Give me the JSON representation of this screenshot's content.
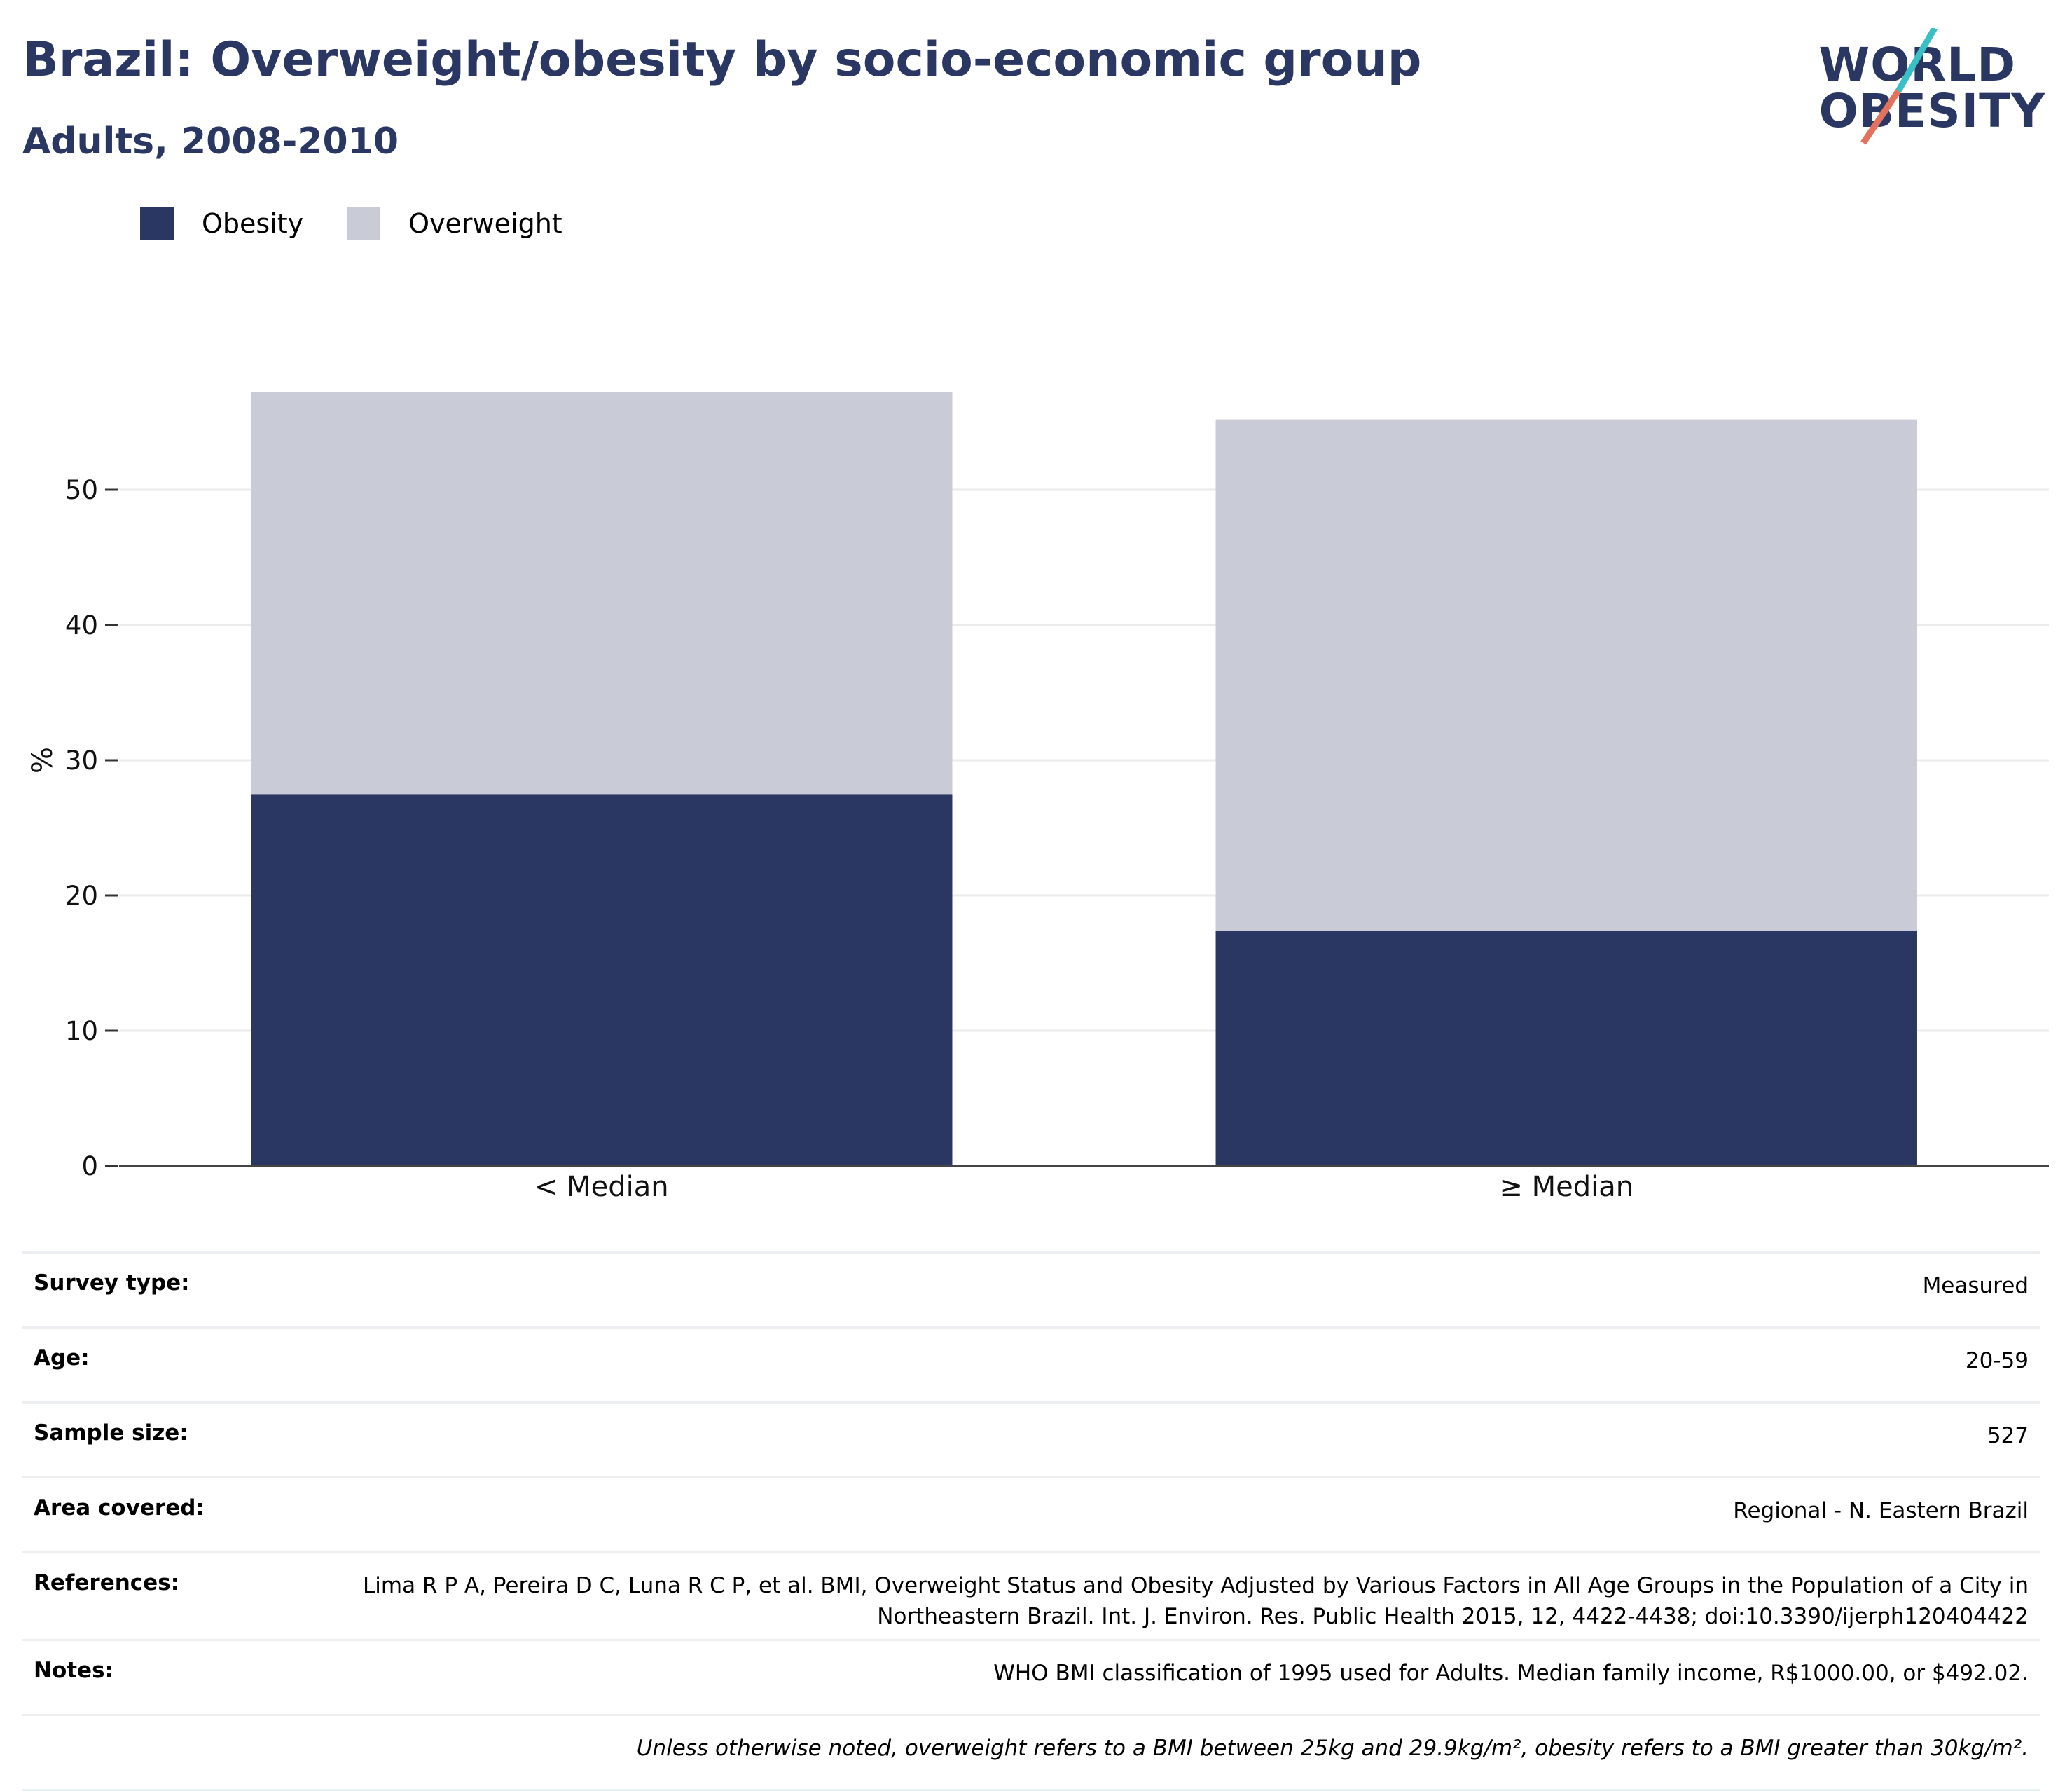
{
  "header": {
    "title": "Brazil: Overweight/obesity by socio-economic group",
    "subtitle": "Adults, 2008-2010"
  },
  "logo": {
    "line1": "WORLD",
    "line2": "OBESITY",
    "accent_colors": [
      "#3bbfc7",
      "#e2725b"
    ]
  },
  "chart_data": {
    "type": "bar",
    "stacked": true,
    "categories": [
      "< Median",
      "≥ Median"
    ],
    "series": [
      {
        "name": "Obesity",
        "color": "#2a3762",
        "values": [
          27.5,
          17.4
        ]
      },
      {
        "name": "Overweight",
        "color": "#c9cbd6",
        "values": [
          29.7,
          37.8
        ]
      }
    ],
    "ylabel": "%",
    "xlabel": "",
    "ylim": [
      0,
      60
    ],
    "yticks": [
      0,
      10,
      20,
      30,
      40,
      50
    ],
    "grid": true,
    "legend_position": "top-left"
  },
  "info": {
    "rows": [
      {
        "label": "Survey type:",
        "value": "Measured"
      },
      {
        "label": "Age:",
        "value": "20-59"
      },
      {
        "label": "Sample size:",
        "value": "527"
      },
      {
        "label": "Area covered:",
        "value": "Regional - N. Eastern Brazil"
      },
      {
        "label": "References:",
        "value": "Lima R P A, Pereira D C, Luna R C P, et al. BMI, Overweight Status and Obesity Adjusted by Various Factors in All Age Groups in the Population of a City in Northeastern Brazil. Int. J. Environ. Res. Public Health 2015, 12, 4422-4438; doi:10.3390/ijerph120404422"
      },
      {
        "label": "Notes:",
        "value": "WHO BMI classification of 1995 used for Adults. Median family income, R$1000.00, or $492.02."
      }
    ],
    "footnote": "Unless otherwise noted, overweight refers to a BMI between 25kg and 29.9kg/m², obesity refers to a BMI greater than 30kg/m²."
  }
}
